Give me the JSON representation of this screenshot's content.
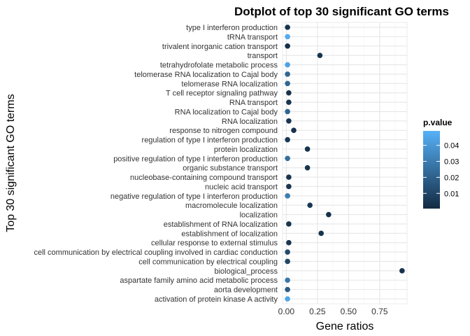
{
  "chart_data": {
    "type": "scatter",
    "title": "Dotplot of top 30 significant GO terms",
    "xlabel": "Gene ratios",
    "ylabel": "Top 30 significant GO terms",
    "xlim": [
      -0.03,
      0.97
    ],
    "xticks": [
      "0.00",
      "0.25",
      "0.50",
      "0.75"
    ],
    "xtick_values": [
      0,
      0.25,
      0.5,
      0.75
    ],
    "grid": true,
    "legend": {
      "title": "p.value",
      "position": "right",
      "ticks": [
        "0.04",
        "0.03",
        "0.02",
        "0.01"
      ],
      "tick_values": [
        0.04,
        0.03,
        0.02,
        0.01
      ],
      "range": [
        0.0005,
        0.049
      ],
      "color_low": "#132B43",
      "color_high": "#56B1F7"
    },
    "points": [
      {
        "term": "type I interferon production",
        "x": 0.01,
        "p": 0.003
      },
      {
        "term": "tRNA transport",
        "x": 0.01,
        "p": 0.047
      },
      {
        "term": "trivalent inorganic cation transport",
        "x": 0.01,
        "p": 0.002
      },
      {
        "term": "transport",
        "x": 0.27,
        "p": 0.004
      },
      {
        "term": "tetrahydrofolate metabolic process",
        "x": 0.01,
        "p": 0.044
      },
      {
        "term": "telomerase RNA localization to Cajal body",
        "x": 0.01,
        "p": 0.022
      },
      {
        "term": "telomerase RNA localization",
        "x": 0.01,
        "p": 0.022
      },
      {
        "term": "T cell receptor signaling pathway",
        "x": 0.02,
        "p": 0.003
      },
      {
        "term": "RNA transport",
        "x": 0.02,
        "p": 0.004
      },
      {
        "term": "RNA localization to Cajal body",
        "x": 0.01,
        "p": 0.022
      },
      {
        "term": "RNA localization",
        "x": 0.02,
        "p": 0.004
      },
      {
        "term": "response to nitrogen compound",
        "x": 0.06,
        "p": 0.003
      },
      {
        "term": "regulation of type I interferon production",
        "x": 0.01,
        "p": 0.005
      },
      {
        "term": "protein localization",
        "x": 0.17,
        "p": 0.003
      },
      {
        "term": "positive regulation of type I interferon production",
        "x": 0.01,
        "p": 0.025
      },
      {
        "term": "organic substance transport",
        "x": 0.17,
        "p": 0.004
      },
      {
        "term": "nucleobase-containing compound transport",
        "x": 0.02,
        "p": 0.004
      },
      {
        "term": "nucleic acid transport",
        "x": 0.02,
        "p": 0.004
      },
      {
        "term": "negative regulation of type I interferon production",
        "x": 0.01,
        "p": 0.03
      },
      {
        "term": "macromolecule localization",
        "x": 0.19,
        "p": 0.005
      },
      {
        "term": "localization",
        "x": 0.34,
        "p": 0.003
      },
      {
        "term": "establishment of RNA localization",
        "x": 0.02,
        "p": 0.004
      },
      {
        "term": "establishment of localization",
        "x": 0.28,
        "p": 0.004
      },
      {
        "term": "cellular response to external stimulus",
        "x": 0.02,
        "p": 0.004
      },
      {
        "term": "cell communication by electrical coupling involved in cardiac conduction",
        "x": 0.01,
        "p": 0.012
      },
      {
        "term": "cell communication by electrical coupling",
        "x": 0.01,
        "p": 0.01
      },
      {
        "term": "biological_process",
        "x": 0.93,
        "p": 0.003
      },
      {
        "term": "aspartate family amino acid metabolic process",
        "x": 0.01,
        "p": 0.028
      },
      {
        "term": "aorta development",
        "x": 0.01,
        "p": 0.018
      },
      {
        "term": "activation of protein kinase A activity",
        "x": 0.01,
        "p": 0.045
      }
    ]
  }
}
